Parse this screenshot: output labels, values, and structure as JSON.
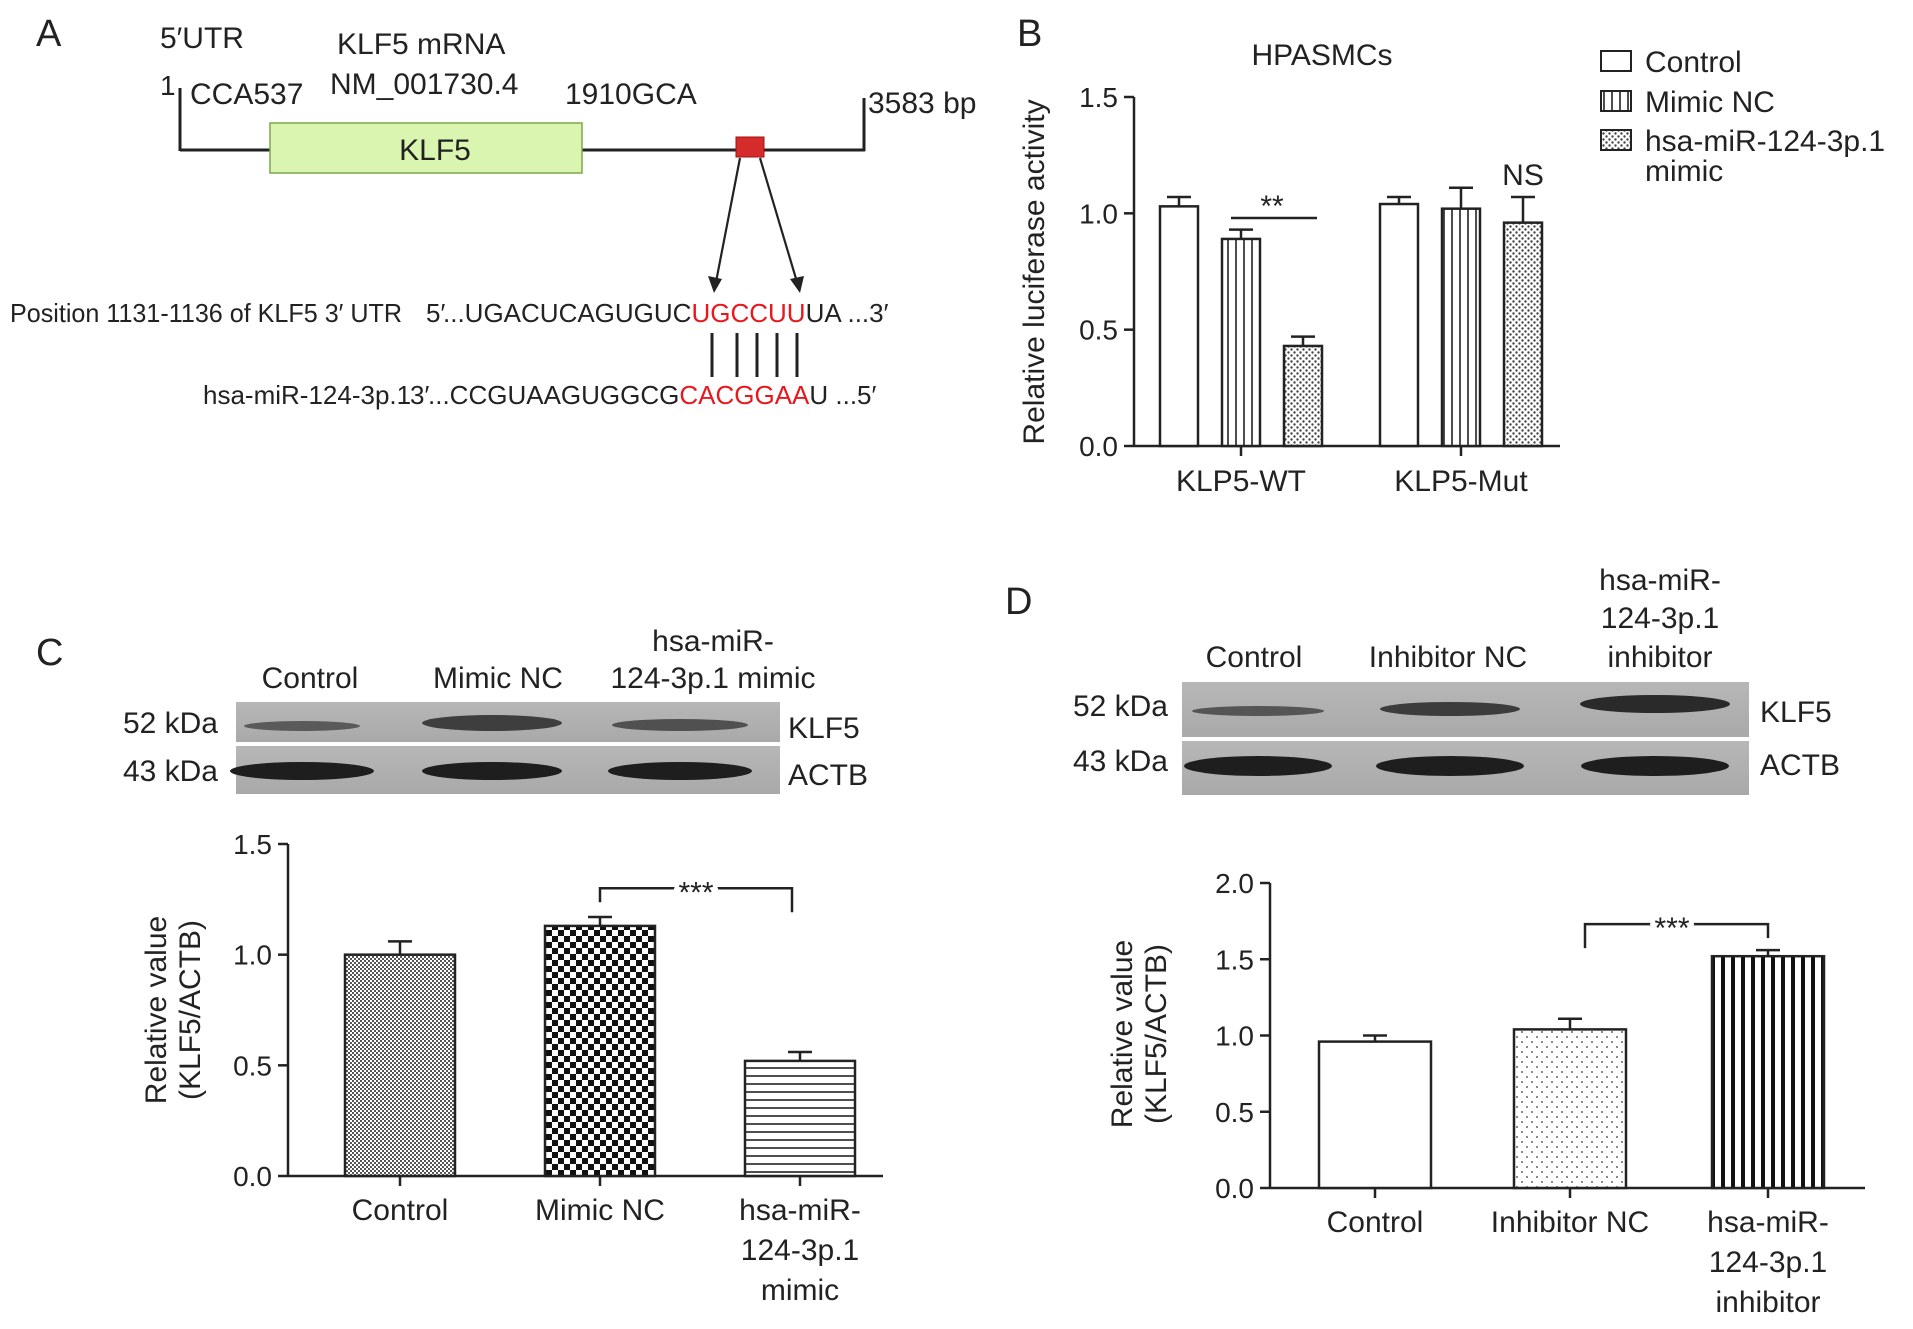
{
  "panel_labels": {
    "a": "A",
    "b": "B",
    "c": "C",
    "d": "D"
  },
  "panel_a": {
    "utr5_label": "5′UTR",
    "mrna_name": "KLF5 mRNA",
    "accession": "NM_001730.4",
    "start_pos": "1",
    "cds_start": "CCA537",
    "cds_end": "1910GCA",
    "length": "3583 bp",
    "gene_box": "KLF5",
    "site_label": "Position 1131-1136 of KLF5  3′ UTR",
    "utr_five_prime": "5′",
    "utr_seq_prefix": " ...UGACUCAGUGUC",
    "utr_seq_match": "UGCCUU",
    "utr_seq_suffix": "UA ...3′",
    "mir_label": "hsa-miR-124-3p.1",
    "mir_three_prime": "3′",
    "mir_seq_prefix": " ...CCGUAAGUGGCG",
    "mir_seq_match": "CACGGAA",
    "mir_seq_suffix": "U ...5′",
    "match_color": "#e8181e",
    "gene_box_color": "#d9f5b0",
    "site_box_color": "#d62b2b"
  },
  "legend": {
    "control": "Control",
    "mimic_nc": "Mimic NC",
    "mimic_line1": "hsa-miR-124-3p.1",
    "mimic_line2": "mimic"
  },
  "panel_c_blot": {
    "lanes": [
      "Control",
      "Mimic NC",
      "hsa-miR-",
      "124-3p.1 mimic"
    ],
    "row1_kda": "52 kDa",
    "row1_protein": "KLF5",
    "row2_kda": "43 kDa",
    "row2_protein": "ACTB"
  },
  "panel_d_blot": {
    "lanes": [
      "Control",
      "Inhibitor NC",
      "hsa-miR-",
      "124-3p.1",
      "inhibitor"
    ],
    "row1_kda": "52 kDa",
    "row1_protein": "KLF5",
    "row2_kda": "43 kDa",
    "row2_protein": "ACTB"
  },
  "chart_data": [
    {
      "panel": "B",
      "type": "bar",
      "title": "HPASMCs",
      "ylabel": "Relative luciferase activity",
      "xlabel": "",
      "ylim": [
        0,
        1.5
      ],
      "yticks": [
        "0.0",
        "0.5",
        "1.0",
        "1.5"
      ],
      "categories": [
        "KLP5-WT",
        "KLP5-Mut"
      ],
      "series": [
        {
          "name": "Control",
          "values": [
            1.03,
            1.04
          ],
          "errors": [
            0.04,
            0.03
          ]
        },
        {
          "name": "Mimic NC",
          "values": [
            0.89,
            1.02
          ],
          "errors": [
            0.04,
            0.09
          ]
        },
        {
          "name": "hsa-miR-124-3p.1 mimic",
          "values": [
            0.43,
            0.96
          ],
          "errors": [
            0.04,
            0.11
          ]
        }
      ],
      "annotations": [
        "**",
        "NS"
      ],
      "legend": "top-right"
    },
    {
      "panel": "C",
      "type": "bar",
      "ylabel_line1": "Relative value",
      "ylabel_line2": "(KLF5/ACTB)",
      "ylim": [
        0,
        1.5
      ],
      "yticks": [
        "0.0",
        "0.5",
        "1.0",
        "1.5"
      ],
      "categories": [
        "Control",
        "Mimic NC",
        "hsa-miR-124-3p.1 mimic"
      ],
      "category_lines": [
        [
          "Control"
        ],
        [
          "Mimic NC"
        ],
        [
          "hsa-miR-",
          "124-3p.1",
          "mimic"
        ]
      ],
      "values": [
        1.0,
        1.13,
        0.52
      ],
      "errors": [
        0.06,
        0.04,
        0.04
      ],
      "annotations": [
        "***"
      ]
    },
    {
      "panel": "D",
      "type": "bar",
      "ylabel_line1": "Relative value",
      "ylabel_line2": "(KLF5/ACTB)",
      "ylim": [
        0,
        2.0
      ],
      "yticks": [
        "0.0",
        "0.5",
        "1.0",
        "1.5",
        "2.0"
      ],
      "categories": [
        "Control",
        "Inhibitor NC",
        "hsa-miR-124-3p.1 inhibitor"
      ],
      "category_lines": [
        [
          "Control"
        ],
        [
          "Inhibitor NC"
        ],
        [
          "hsa-miR-",
          "124-3p.1",
          "inhibitor"
        ]
      ],
      "values": [
        0.96,
        1.04,
        1.52
      ],
      "errors": [
        0.04,
        0.07,
        0.04
      ],
      "annotations": [
        "***"
      ]
    }
  ]
}
